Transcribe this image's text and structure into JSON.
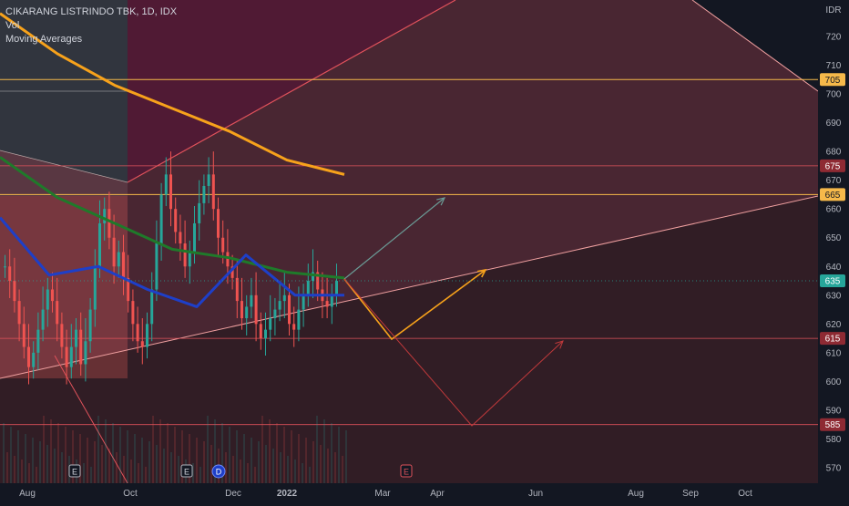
{
  "header": {
    "symbol_line": "CIKARANG LISTRINDO TBK, 1D, IDX",
    "vol_label": "Vol",
    "ma_label": "Moving Averages"
  },
  "colors": {
    "background": "#131722",
    "up": "#26a69a",
    "down": "#ef5350",
    "ma_fast": "#1e3fc8",
    "ma_mid": "#1f7a2a",
    "ma_slow": "#f7a21b",
    "level_orange": "#f6b94a",
    "level_red": "#e0525b",
    "last_price": "#26a69a"
  },
  "chart_data": {
    "type": "candlestick",
    "currency": "IDR",
    "y_ticks": [
      570,
      580,
      590,
      600,
      610,
      620,
      630,
      640,
      650,
      660,
      670,
      680,
      690,
      700,
      710,
      720
    ],
    "ylim": [
      566,
      733
    ],
    "x_ticks": [
      "Aug",
      "Oct",
      "Dec",
      "2022",
      "Mar",
      "Apr",
      "Jun",
      "Aug",
      "Sep",
      "Oct"
    ],
    "last_price": 635,
    "price_levels": [
      {
        "value": 705,
        "style": "orange"
      },
      {
        "value": 675,
        "style": "red"
      },
      {
        "value": 665,
        "style": "orange"
      },
      {
        "value": 615,
        "style": "red"
      },
      {
        "value": 585,
        "style": "red"
      }
    ],
    "events": [
      {
        "label": "E",
        "month": "Aug"
      },
      {
        "label": "E",
        "month": "Nov"
      },
      {
        "label": "D",
        "month": "Nov"
      },
      {
        "label": "E",
        "month": "Mar"
      }
    ],
    "ma_slow_values": [
      728,
      714,
      703,
      695,
      687,
      677,
      672
    ],
    "ma_mid_values": [
      678,
      664,
      655,
      646,
      643,
      638,
      636
    ],
    "ma_fast_values": [
      657,
      637,
      640,
      632,
      626,
      644,
      630,
      630
    ]
  }
}
